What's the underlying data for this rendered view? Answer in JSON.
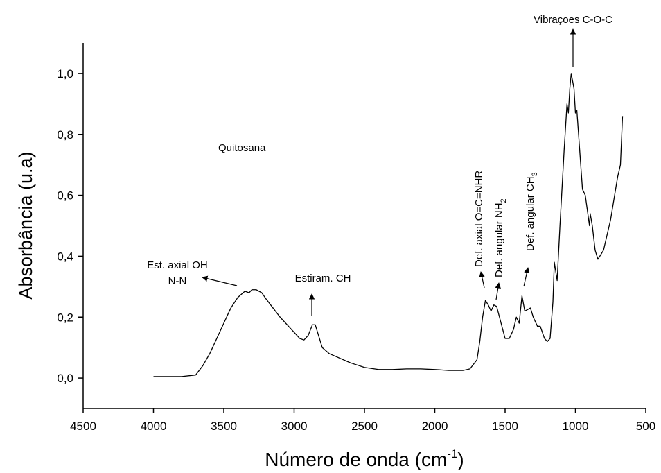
{
  "chart_data": {
    "type": "line",
    "y_label": "Absorbância (u.a)",
    "x_label": {
      "text": "Número de onda (cm",
      "sup": "-1",
      "tail": ")"
    },
    "annotations": [
      {
        "text": "Quitosana"
      },
      {
        "text": "Est. axial OH"
      },
      {
        "text": "N-N"
      },
      {
        "text": "Estiram. CH"
      },
      {
        "text": "Def. axial O=C=NHR"
      },
      {
        "text": "Def. angular NH",
        "sub": "2"
      },
      {
        "text": "Def. angular CH",
        "sub": "3"
      },
      {
        "text": "Vibraçoes C-O-C"
      }
    ],
    "xlim": [
      4500,
      500
    ],
    "xticks": [
      4500,
      4000,
      3500,
      3000,
      2500,
      2000,
      1500,
      1000,
      500
    ],
    "ylim": [
      -0.1,
      1.1
    ],
    "yticks": [
      {
        "value": 0.0,
        "label": "0,0"
      },
      {
        "value": 0.2,
        "label": "0,2"
      },
      {
        "value": 0.4,
        "label": "0,4"
      },
      {
        "value": 0.6,
        "label": "0,6"
      },
      {
        "value": 0.8,
        "label": "0,8"
      },
      {
        "value": 1.0,
        "label": "1,0"
      }
    ],
    "grid": false,
    "series": [
      {
        "color": "#000000",
        "x": [
          4000,
          3800,
          3700,
          3650,
          3600,
          3550,
          3500,
          3450,
          3400,
          3350,
          3320,
          3300,
          3270,
          3230,
          3200,
          3150,
          3100,
          3050,
          3000,
          2960,
          2930,
          2900,
          2870,
          2850,
          2820,
          2800,
          2750,
          2700,
          2600,
          2500,
          2400,
          2300,
          2200,
          2100,
          2000,
          1900,
          1800,
          1750,
          1700,
          1680,
          1660,
          1640,
          1620,
          1600,
          1580,
          1560,
          1540,
          1500,
          1470,
          1440,
          1420,
          1400,
          1380,
          1360,
          1320,
          1300,
          1270,
          1250,
          1220,
          1200,
          1180,
          1160,
          1150,
          1130,
          1110,
          1080,
          1060,
          1050,
          1040,
          1030,
          1010,
          1000,
          990,
          970,
          950,
          930,
          900,
          895,
          880,
          860,
          840,
          800,
          750,
          700,
          680,
          665
        ],
        "values": [
          0.005,
          0.005,
          0.01,
          0.04,
          0.08,
          0.13,
          0.18,
          0.23,
          0.265,
          0.285,
          0.28,
          0.29,
          0.29,
          0.28,
          0.26,
          0.23,
          0.2,
          0.175,
          0.15,
          0.13,
          0.125,
          0.14,
          0.175,
          0.175,
          0.13,
          0.1,
          0.08,
          0.07,
          0.05,
          0.035,
          0.028,
          0.028,
          0.03,
          0.03,
          0.028,
          0.025,
          0.025,
          0.03,
          0.06,
          0.12,
          0.2,
          0.255,
          0.24,
          0.22,
          0.24,
          0.235,
          0.2,
          0.13,
          0.13,
          0.16,
          0.2,
          0.18,
          0.27,
          0.22,
          0.23,
          0.2,
          0.17,
          0.17,
          0.13,
          0.12,
          0.13,
          0.25,
          0.38,
          0.32,
          0.5,
          0.75,
          0.9,
          0.87,
          0.95,
          1.0,
          0.95,
          0.87,
          0.88,
          0.75,
          0.62,
          0.6,
          0.5,
          0.54,
          0.5,
          0.42,
          0.39,
          0.42,
          0.52,
          0.66,
          0.7,
          0.86
        ]
      }
    ]
  }
}
